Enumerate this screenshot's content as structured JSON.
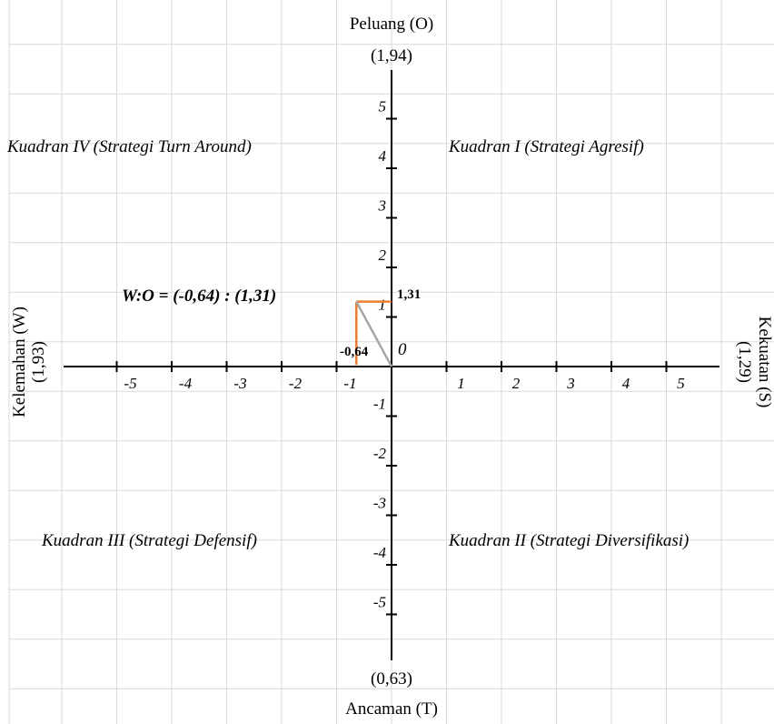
{
  "axes": {
    "top_title": "Peluang (O)",
    "top_value": "(1,94)",
    "bottom_value": "(0,63)",
    "bottom_title": "Ancaman (T)",
    "left_title": "Kelemahan (W)",
    "left_value": "(1,93)",
    "right_value": "(1,29)",
    "right_title": "Kekuatan (S)",
    "origin_label": "0"
  },
  "quadrants": {
    "q1": "Kuadran I (Strategi Agresif)",
    "q2": "Kuadran II (Strategi Diversifikasi)",
    "q3": "Kuadran III (Strategi Defensif)",
    "q4": "Kuadran IV (Strategi Turn Around)"
  },
  "annotation": {
    "formula": "W:O = (-0,64) : (1,31)",
    "x_value_label": "-0,64",
    "y_value_label": "1,31"
  },
  "colors": {
    "grid": "#d9d9d9",
    "axis": "#000000",
    "vector": "#a6a6a6",
    "projection": "#ed7d31"
  },
  "chart_data": {
    "type": "scatter",
    "x_ticks": [
      -5,
      -4,
      -3,
      -2,
      -1,
      1,
      2,
      3,
      4,
      5
    ],
    "y_ticks": [
      -5,
      -4,
      -3,
      -2,
      -1,
      1,
      2,
      3,
      4,
      5
    ],
    "x_tick_labels": [
      "-5",
      "-4",
      "-3",
      "-2",
      "-1",
      "1",
      "2",
      "3",
      "4",
      "5"
    ],
    "y_tick_labels": [
      "-5",
      "-4",
      "-3",
      "-2",
      "-1",
      "1",
      "2",
      "3",
      "4",
      "5"
    ],
    "xlim": [
      -6,
      6
    ],
    "ylim": [
      -6,
      6
    ],
    "grid": true,
    "point": {
      "x": -0.64,
      "y": 1.31
    }
  }
}
